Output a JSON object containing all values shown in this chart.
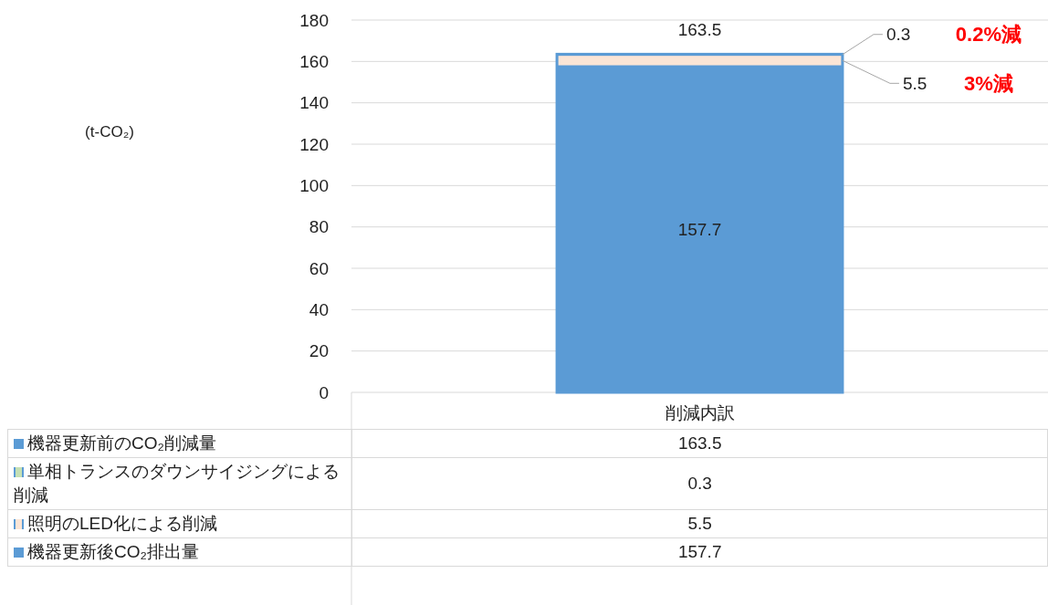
{
  "chart_data": {
    "type": "bar",
    "categories": [
      "削減内訳"
    ],
    "ylim": [
      0,
      180
    ],
    "yticks": [
      0,
      20,
      40,
      60,
      80,
      100,
      120,
      140,
      160,
      180
    ],
    "grid": "y",
    "legend": "bottom",
    "series": [
      {
        "name": "機器更新後CO₂排出量",
        "color": "#5b9bd5",
        "values": [
          157.7
        ],
        "base": [
          0
        ],
        "value_labels": [
          "157.7"
        ]
      },
      {
        "name": "照明のLED化による削減",
        "color": "#fbe5d6",
        "values": [
          5.5
        ],
        "base": [
          157.7
        ],
        "value_labels": [
          "5.5"
        ]
      },
      {
        "name": "単相トランスのダウンサイジングによる削減",
        "color": "#c5e0b4",
        "values": [
          0.3
        ],
        "base": [
          163.2
        ],
        "value_labels": [
          "0.3"
        ]
      },
      {
        "name": "機器更新前のCO₂削減量",
        "color": "#5b9bd5",
        "values": [
          163.5
        ],
        "base": [
          0
        ],
        "value_labels": [
          "163.5"
        ]
      }
    ],
    "annotations": [
      "(t-CO₂)",
      "3%減",
      "0.2%減"
    ]
  }
}
